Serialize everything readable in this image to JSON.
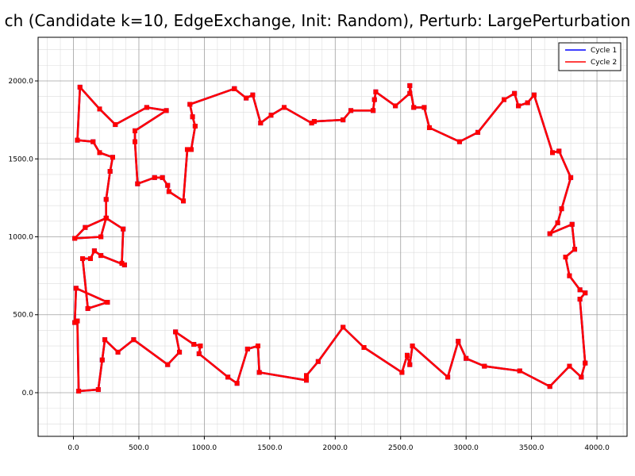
{
  "chart_data": {
    "type": "line",
    "title": "ch (Candidate k=10, EdgeExchange, Init: Random), Perturb: LargePerturbation",
    "xlabel": "",
    "ylabel": "",
    "xlim": [
      -270,
      4230
    ],
    "ylim": [
      -280,
      2280
    ],
    "x_ticks": [
      0,
      500,
      1000,
      1500,
      2000,
      2500,
      3000,
      3500,
      4000
    ],
    "x_tick_labels": [
      "0.0",
      "500.0",
      "1000.0",
      "1500.0",
      "2000.0",
      "2500.0",
      "3000.0",
      "3500.0",
      "4000.0"
    ],
    "y_ticks": [
      0,
      500,
      1000,
      1500,
      2000
    ],
    "y_tick_labels": [
      "0.0",
      "500.0",
      "1000.0",
      "1500.0",
      "2000.0"
    ],
    "grid": true,
    "minor_grid_step": 100,
    "legend_position": "top-right",
    "series": [
      {
        "name": "Cycle 1",
        "color": "#0000ff",
        "points": [
          [
            1230,
            1950
          ],
          [
            1320,
            1890
          ],
          [
            1370,
            1910
          ],
          [
            1430,
            1730
          ],
          [
            1510,
            1780
          ],
          [
            1610,
            1830
          ],
          [
            1820,
            1730
          ],
          [
            1840,
            1740
          ],
          [
            2060,
            1750
          ],
          [
            2120,
            1810
          ],
          [
            2290,
            1810
          ],
          [
            2300,
            1880
          ],
          [
            2310,
            1930
          ],
          [
            2460,
            1840
          ],
          [
            2570,
            1920
          ],
          [
            2570,
            1970
          ],
          [
            2600,
            1830
          ],
          [
            2680,
            1830
          ],
          [
            2720,
            1700
          ],
          [
            2950,
            1610
          ],
          [
            3090,
            1670
          ],
          [
            3290,
            1880
          ],
          [
            3370,
            1920
          ],
          [
            3400,
            1840
          ],
          [
            3470,
            1860
          ],
          [
            3520,
            1910
          ],
          [
            3660,
            1540
          ],
          [
            3710,
            1550
          ],
          [
            3800,
            1380
          ],
          [
            3730,
            1180
          ],
          [
            3700,
            1090
          ],
          [
            3640,
            1020
          ],
          [
            3810,
            1080
          ],
          [
            3830,
            920
          ],
          [
            3760,
            870
          ],
          [
            3790,
            750
          ],
          [
            3870,
            660
          ],
          [
            3910,
            640
          ],
          [
            3870,
            600
          ],
          [
            3910,
            190
          ],
          [
            3880,
            100
          ],
          [
            3790,
            170
          ],
          [
            3640,
            40
          ],
          [
            3410,
            140
          ],
          [
            3140,
            170
          ],
          [
            3000,
            220
          ],
          [
            2940,
            330
          ],
          [
            2860,
            100
          ],
          [
            2590,
            300
          ],
          [
            2570,
            180
          ],
          [
            2550,
            240
          ],
          [
            2510,
            130
          ],
          [
            2220,
            290
          ],
          [
            2060,
            420
          ],
          [
            1870,
            200
          ],
          [
            1780,
            110
          ],
          [
            1780,
            80
          ],
          [
            1420,
            130
          ],
          [
            1410,
            300
          ],
          [
            1330,
            280
          ],
          [
            1250,
            60
          ],
          [
            1180,
            100
          ],
          [
            960,
            250
          ],
          [
            970,
            300
          ],
          [
            920,
            310
          ],
          [
            780,
            390
          ],
          [
            810,
            260
          ],
          [
            720,
            180
          ],
          [
            460,
            340
          ],
          [
            340,
            260
          ],
          [
            240,
            340
          ],
          [
            220,
            210
          ],
          [
            190,
            20
          ],
          [
            40,
            10
          ],
          [
            30,
            460
          ],
          [
            10,
            450
          ],
          [
            20,
            670
          ],
          [
            260,
            580
          ],
          [
            110,
            540
          ],
          [
            70,
            860
          ],
          [
            130,
            860
          ],
          [
            160,
            910
          ],
          [
            210,
            880
          ],
          [
            390,
            820
          ],
          [
            370,
            830
          ],
          [
            380,
            1050
          ],
          [
            250,
            1120
          ],
          [
            90,
            1060
          ],
          [
            10,
            990
          ],
          [
            210,
            1000
          ],
          [
            250,
            1120
          ],
          [
            250,
            1240
          ],
          [
            280,
            1420
          ],
          [
            300,
            1510
          ],
          [
            200,
            1540
          ],
          [
            150,
            1610
          ],
          [
            30,
            1620
          ],
          [
            50,
            1960
          ],
          [
            200,
            1820
          ],
          [
            320,
            1720
          ],
          [
            560,
            1830
          ],
          [
            710,
            1810
          ],
          [
            470,
            1680
          ],
          [
            470,
            1610
          ],
          [
            490,
            1340
          ],
          [
            620,
            1380
          ],
          [
            680,
            1380
          ],
          [
            720,
            1330
          ],
          [
            730,
            1290
          ],
          [
            840,
            1230
          ],
          [
            870,
            1560
          ],
          [
            900,
            1560
          ],
          [
            930,
            1710
          ],
          [
            910,
            1770
          ],
          [
            890,
            1850
          ],
          [
            1230,
            1950
          ]
        ]
      },
      {
        "name": "Cycle 2",
        "color": "#ff0000",
        "points": [
          [
            1230,
            1950
          ],
          [
            1320,
            1890
          ],
          [
            1370,
            1910
          ],
          [
            1430,
            1730
          ],
          [
            1510,
            1780
          ],
          [
            1610,
            1830
          ],
          [
            1820,
            1730
          ],
          [
            1840,
            1740
          ],
          [
            2060,
            1750
          ],
          [
            2120,
            1810
          ],
          [
            2290,
            1810
          ],
          [
            2300,
            1880
          ],
          [
            2310,
            1930
          ],
          [
            2460,
            1840
          ],
          [
            2570,
            1920
          ],
          [
            2570,
            1970
          ],
          [
            2600,
            1830
          ],
          [
            2680,
            1830
          ],
          [
            2720,
            1700
          ],
          [
            2950,
            1610
          ],
          [
            3090,
            1670
          ],
          [
            3290,
            1880
          ],
          [
            3370,
            1920
          ],
          [
            3400,
            1840
          ],
          [
            3470,
            1860
          ],
          [
            3520,
            1910
          ],
          [
            3660,
            1540
          ],
          [
            3710,
            1550
          ],
          [
            3800,
            1380
          ],
          [
            3730,
            1180
          ],
          [
            3700,
            1090
          ],
          [
            3640,
            1020
          ],
          [
            3810,
            1080
          ],
          [
            3830,
            920
          ],
          [
            3760,
            870
          ],
          [
            3790,
            750
          ],
          [
            3870,
            660
          ],
          [
            3910,
            640
          ],
          [
            3870,
            600
          ],
          [
            3910,
            190
          ],
          [
            3880,
            100
          ],
          [
            3790,
            170
          ],
          [
            3640,
            40
          ],
          [
            3410,
            140
          ],
          [
            3140,
            170
          ],
          [
            3000,
            220
          ],
          [
            2940,
            330
          ],
          [
            2860,
            100
          ],
          [
            2590,
            300
          ],
          [
            2570,
            180
          ],
          [
            2550,
            240
          ],
          [
            2510,
            130
          ],
          [
            2220,
            290
          ],
          [
            2060,
            420
          ],
          [
            1870,
            200
          ],
          [
            1780,
            110
          ],
          [
            1780,
            80
          ],
          [
            1420,
            130
          ],
          [
            1410,
            300
          ],
          [
            1330,
            280
          ],
          [
            1250,
            60
          ],
          [
            1180,
            100
          ],
          [
            960,
            250
          ],
          [
            970,
            300
          ],
          [
            920,
            310
          ],
          [
            780,
            390
          ],
          [
            810,
            260
          ],
          [
            720,
            180
          ],
          [
            460,
            340
          ],
          [
            340,
            260
          ],
          [
            240,
            340
          ],
          [
            220,
            210
          ],
          [
            190,
            20
          ],
          [
            40,
            10
          ],
          [
            30,
            460
          ],
          [
            10,
            450
          ],
          [
            20,
            670
          ],
          [
            260,
            580
          ],
          [
            110,
            540
          ],
          [
            70,
            860
          ],
          [
            130,
            860
          ],
          [
            160,
            910
          ],
          [
            210,
            880
          ],
          [
            390,
            820
          ],
          [
            370,
            830
          ],
          [
            380,
            1050
          ],
          [
            250,
            1120
          ],
          [
            90,
            1060
          ],
          [
            10,
            990
          ],
          [
            210,
            1000
          ],
          [
            250,
            1120
          ],
          [
            250,
            1240
          ],
          [
            280,
            1420
          ],
          [
            300,
            1510
          ],
          [
            200,
            1540
          ],
          [
            150,
            1610
          ],
          [
            30,
            1620
          ],
          [
            50,
            1960
          ],
          [
            200,
            1820
          ],
          [
            320,
            1720
          ],
          [
            560,
            1830
          ],
          [
            710,
            1810
          ],
          [
            470,
            1680
          ],
          [
            470,
            1610
          ],
          [
            490,
            1340
          ],
          [
            620,
            1380
          ],
          [
            680,
            1380
          ],
          [
            720,
            1330
          ],
          [
            730,
            1290
          ],
          [
            840,
            1230
          ],
          [
            870,
            1560
          ],
          [
            900,
            1560
          ],
          [
            930,
            1710
          ],
          [
            910,
            1770
          ],
          [
            890,
            1850
          ],
          [
            1230,
            1950
          ]
        ]
      }
    ]
  }
}
